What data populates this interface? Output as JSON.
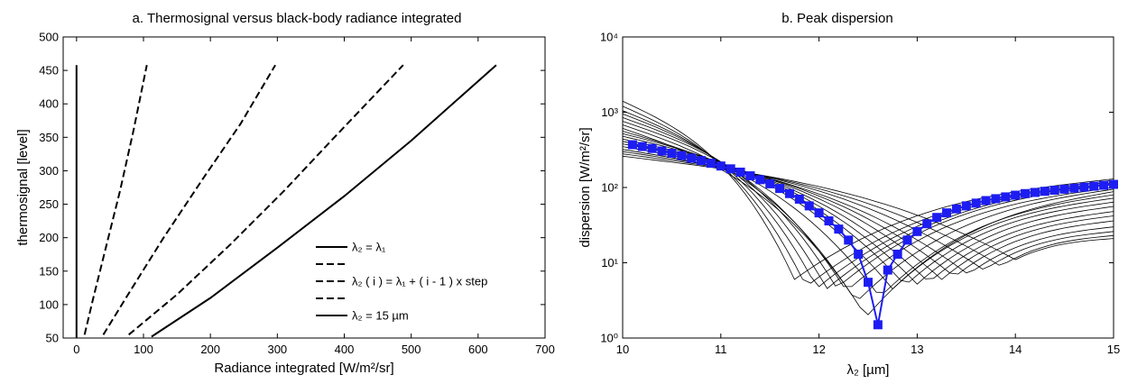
{
  "chart_data": [
    {
      "id": "a",
      "type": "line",
      "title": "a. Thermosignal versus black-body radiance integrated",
      "xlabel": "Radiance integrated [W/m²/sr]",
      "ylabel": "thermosignal [level]",
      "xlim": [
        -20,
        700
      ],
      "ylim": [
        50,
        500
      ],
      "xticks": [
        0,
        100,
        200,
        300,
        400,
        500,
        600,
        700
      ],
      "yticks": [
        50,
        100,
        150,
        200,
        250,
        300,
        350,
        400,
        450,
        500
      ],
      "grid": false,
      "legend_position": "lower-right",
      "legend": [
        {
          "style": "solid",
          "label": "λ₂ = λ₁"
        },
        {
          "style": "dashed",
          "label": ""
        },
        {
          "style": "dashed",
          "label": "λ₂ ( i ) = λ₁ + ( i - 1 ) x step"
        },
        {
          "style": "dashed",
          "label": ""
        },
        {
          "style": "solid",
          "label": "λ₂ = 15 µm"
        }
      ],
      "series": [
        {
          "style": "solid",
          "points": [
            [
              0,
              50
            ],
            [
              0,
              458
            ]
          ]
        },
        {
          "style": "dashed",
          "points": [
            [
              12,
              55
            ],
            [
              25,
              110
            ],
            [
              45,
              190
            ],
            [
              65,
              270
            ],
            [
              85,
              360
            ],
            [
              105,
              458
            ]
          ]
        },
        {
          "style": "dashed",
          "points": [
            [
              40,
              55
            ],
            [
              80,
              120
            ],
            [
              130,
              200
            ],
            [
              190,
              290
            ],
            [
              245,
              370
            ],
            [
              297,
              458
            ]
          ]
        },
        {
          "style": "dashed",
          "points": [
            [
              78,
              55
            ],
            [
              150,
              115
            ],
            [
              230,
              190
            ],
            [
              310,
              270
            ],
            [
              390,
              355
            ],
            [
              488,
              458
            ]
          ]
        },
        {
          "style": "solid",
          "points": [
            [
              112,
              52
            ],
            [
              200,
              110
            ],
            [
              300,
              185
            ],
            [
              400,
              262
            ],
            [
              500,
              345
            ],
            [
              627,
              458
            ]
          ]
        }
      ]
    },
    {
      "id": "b",
      "type": "line",
      "title": "b. Peak dispersion",
      "xlabel": "λ₂ [µm]",
      "ylabel": "dispersion [W/m²/sr]",
      "xlim": [
        10,
        15
      ],
      "ylim": [
        1,
        10000
      ],
      "yscale": "log",
      "xticks": [
        10,
        11,
        12,
        13,
        14,
        15
      ],
      "yticks": [
        1,
        10,
        100,
        1000,
        10000
      ],
      "ytick_labels": [
        "10⁰",
        "10¹",
        "10²",
        "10³",
        "10⁴"
      ],
      "grid": false,
      "series_color": "#1d1df2",
      "curve_color": "#000000",
      "thin_curves": {
        "min_positions": [
          11.75,
          11.87,
          11.98,
          12.08,
          12.18,
          12.28,
          12.38,
          12.48,
          12.62,
          12.75,
          12.88,
          13.0,
          13.12,
          13.25,
          13.38,
          13.52,
          13.68,
          13.85,
          14.0
        ],
        "min_values": [
          6,
          4.8,
          4.6,
          4.5,
          4.6,
          4.2,
          3.0,
          1.9,
          3.5,
          4.5,
          5,
          5.2,
          5.5,
          6,
          6.5,
          7,
          8,
          9,
          11
        ],
        "start_values_at_10": [
          1400,
          1200,
          1050,
          950,
          850,
          760,
          680,
          610,
          560,
          520,
          480,
          440,
          410,
          380,
          350,
          320,
          300,
          280,
          260
        ],
        "end_values_at_15": [
          130,
          125,
          120,
          115,
          110,
          100,
          95,
          88,
          80,
          72,
          64,
          56,
          48,
          42,
          36,
          30,
          26,
          23,
          21
        ]
      },
      "blue_series": {
        "marker": "square",
        "x": [
          10.1,
          10.2,
          10.3,
          10.4,
          10.5,
          10.6,
          10.7,
          10.8,
          10.9,
          11.0,
          11.1,
          11.2,
          11.3,
          11.4,
          11.5,
          11.6,
          11.7,
          11.8,
          11.9,
          12.0,
          12.1,
          12.2,
          12.3,
          12.4,
          12.5,
          12.6,
          12.7,
          12.8,
          12.9,
          13.0,
          13.1,
          13.2,
          13.3,
          13.4,
          13.5,
          13.6,
          13.7,
          13.8,
          13.9,
          14.0,
          14.1,
          14.2,
          14.3,
          14.4,
          14.5,
          14.6,
          14.7,
          14.8,
          14.9,
          15.0
        ],
        "y": [
          370,
          350,
          330,
          305,
          285,
          265,
          245,
          228,
          210,
          193,
          177,
          160,
          143,
          127,
          112,
          97,
          83,
          70,
          57,
          46,
          36,
          28,
          20,
          13,
          5.5,
          1.5,
          8,
          13,
          20,
          26,
          33,
          40,
          46,
          52,
          57,
          62,
          67,
          71,
          75,
          79,
          83,
          86,
          89,
          92,
          95,
          98,
          101,
          104,
          107,
          110
        ]
      }
    }
  ]
}
